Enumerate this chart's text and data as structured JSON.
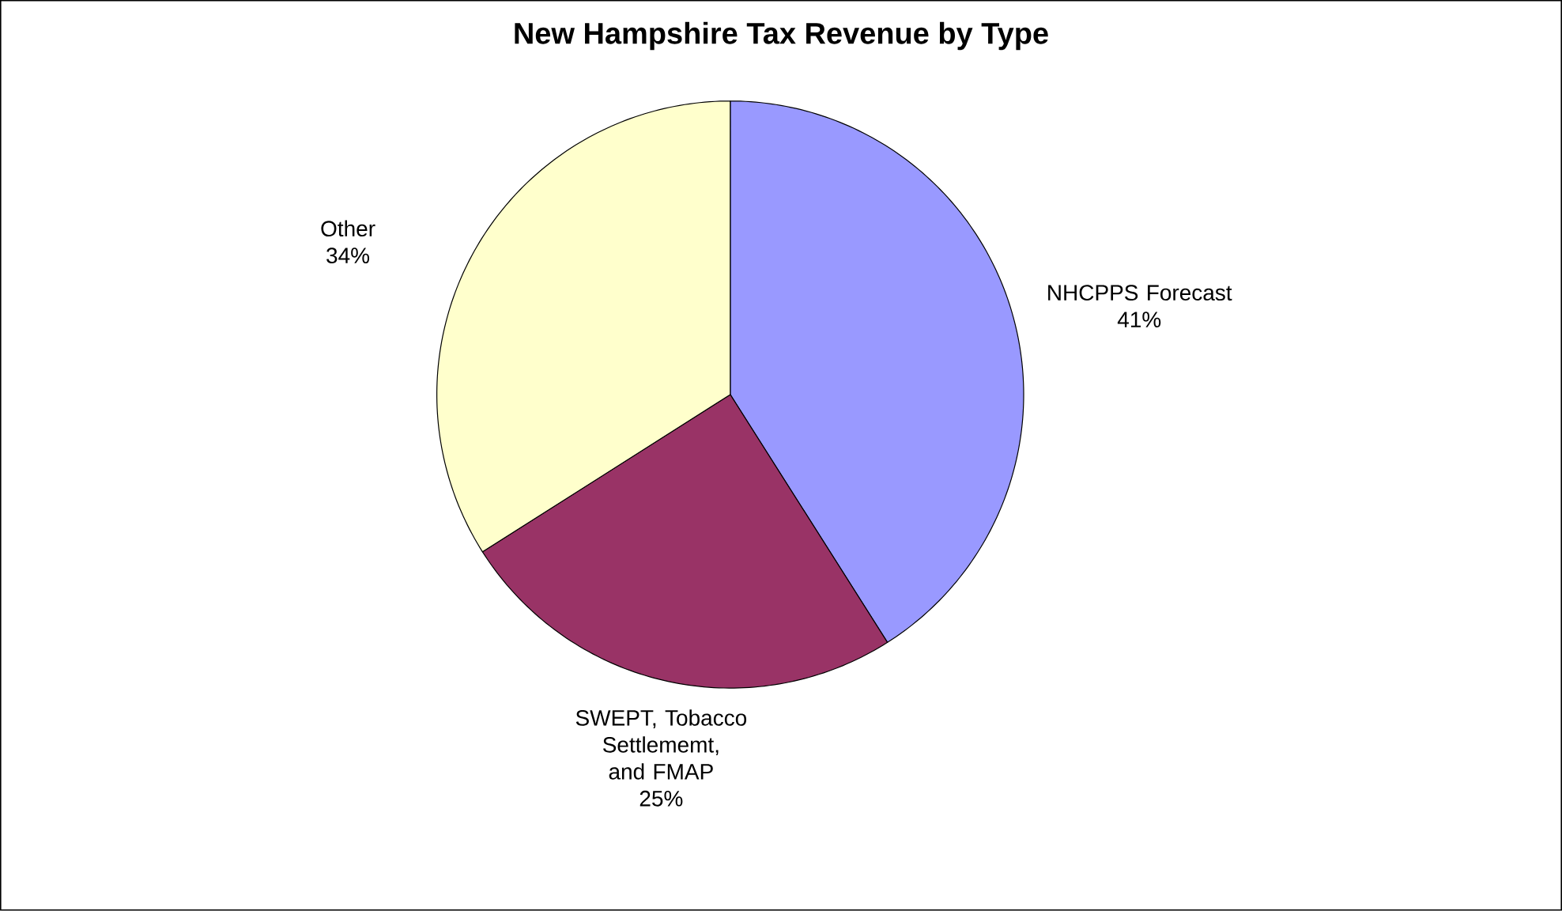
{
  "chart_data": {
    "type": "pie",
    "title": "New Hampshire Tax Revenue by Type",
    "categories": [
      "NHCPPS Forecast",
      "SWEPT, Tobacco Settlememt, and FMAP",
      "Other"
    ],
    "values": [
      41,
      25,
      34
    ],
    "value_labels": [
      "41%",
      "25%",
      "34%"
    ],
    "colors": [
      "#9999ff",
      "#993366",
      "#ffffcc"
    ]
  }
}
